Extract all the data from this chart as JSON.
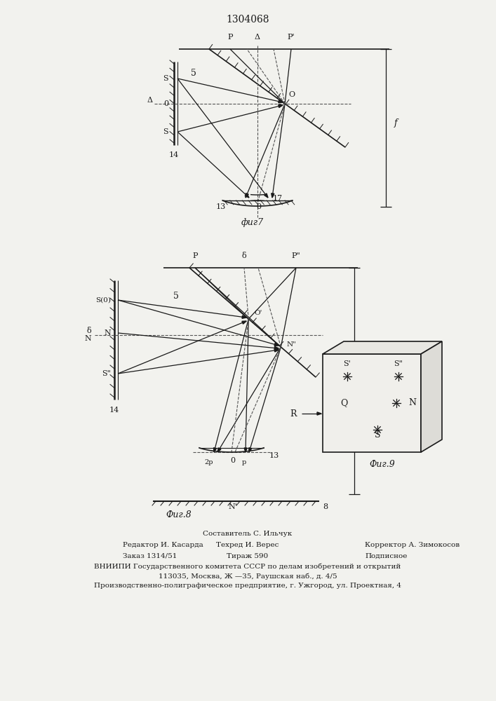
{
  "title": "1304068",
  "bg_color": "#f2f2ee",
  "line_color": "#1a1a1a",
  "footer_line1": "Составитель С. Ильчук",
  "footer_line2a": "Редактор И. Касарда",
  "footer_line2b": "Техред И. Верес",
  "footer_line2c": "Корректор А. Зимокосов",
  "footer_line3a": "Заказ 1314/51",
  "footer_line3b": "Тираж 590",
  "footer_line3c": "Подписное",
  "footer_line4": "ВНИИПИ Государственного комитета СССР по делам изобретений и открытий",
  "footer_line5": "113035, Москва, Ж —35, Раушская наб., д. 4/5",
  "footer_line6": "Производственно-полиграфическое предприятие, г. Ужгород, ул. Проектная, 4"
}
